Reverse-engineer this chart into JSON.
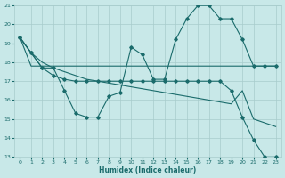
{
  "background_color": "#c8e8e8",
  "grid_color": "#a8cccc",
  "line_color": "#1a6b6b",
  "xlabel": "Humidex (Indice chaleur)",
  "xlim": [
    -0.5,
    23.5
  ],
  "ylim": [
    13,
    21
  ],
  "yticks": [
    13,
    14,
    15,
    16,
    17,
    18,
    19,
    20,
    21
  ],
  "xticks": [
    0,
    1,
    2,
    3,
    4,
    5,
    6,
    7,
    8,
    9,
    10,
    11,
    12,
    13,
    14,
    15,
    16,
    17,
    18,
    19,
    20,
    21,
    22,
    23
  ],
  "curve_wavy": {
    "x": [
      0,
      1,
      2,
      3,
      4,
      5,
      6,
      7,
      8,
      9,
      10,
      11,
      12,
      13,
      14,
      15,
      16,
      17,
      18,
      19,
      20,
      21,
      22,
      23
    ],
    "y": [
      19.3,
      18.5,
      17.7,
      17.7,
      16.5,
      15.3,
      15.1,
      15.1,
      16.2,
      16.4,
      18.8,
      18.4,
      17.1,
      17.1,
      19.2,
      20.3,
      21.0,
      21.0,
      20.3,
      20.3,
      19.2,
      17.8,
      17.8,
      17.8
    ]
  },
  "curve_flat": {
    "x": [
      0,
      1,
      2,
      3,
      4,
      5,
      6,
      7,
      8,
      9,
      10,
      11,
      12,
      13,
      14,
      15,
      16,
      17,
      18,
      19,
      20,
      21,
      22,
      23
    ],
    "y": [
      19.3,
      17.8,
      17.8,
      17.8,
      17.8,
      17.8,
      17.8,
      17.8,
      17.8,
      17.8,
      17.8,
      17.8,
      17.8,
      17.8,
      17.8,
      17.8,
      17.8,
      17.8,
      17.8,
      17.8,
      17.8,
      17.8,
      17.8,
      17.8
    ]
  },
  "curve_decline_slow": {
    "x": [
      0,
      1,
      2,
      3,
      4,
      5,
      6,
      7,
      8,
      9,
      10,
      11,
      12,
      13,
      14,
      15,
      16,
      17,
      18,
      19,
      20,
      21,
      22,
      23
    ],
    "y": [
      19.3,
      18.5,
      18.0,
      17.7,
      17.5,
      17.3,
      17.1,
      17.0,
      16.9,
      16.8,
      16.7,
      16.6,
      16.5,
      16.4,
      16.3,
      16.2,
      16.1,
      16.0,
      15.9,
      15.8,
      16.5,
      15.0,
      14.8,
      14.6
    ]
  },
  "curve_decline_steep": {
    "x": [
      0,
      1,
      2,
      3,
      4,
      5,
      6,
      7,
      8,
      9,
      10,
      11,
      12,
      13,
      14,
      15,
      16,
      17,
      18,
      19,
      20,
      21,
      22,
      23
    ],
    "y": [
      19.3,
      18.5,
      17.7,
      17.3,
      17.1,
      17.0,
      17.0,
      17.0,
      17.0,
      17.0,
      17.0,
      17.0,
      17.0,
      17.0,
      17.0,
      17.0,
      17.0,
      17.0,
      17.0,
      16.5,
      15.1,
      13.9,
      13.0,
      13.0
    ]
  }
}
